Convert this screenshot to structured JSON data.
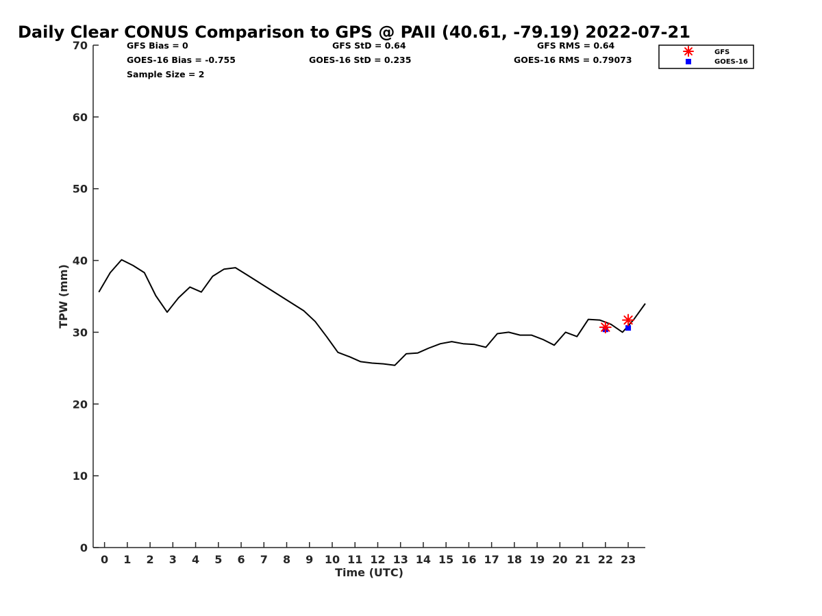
{
  "chart_data": {
    "type": "line",
    "title": "Daily Clear CONUS Comparison to GPS @ PAII (40.61, -79.19) 2022-07-21",
    "xlabel": "Time (UTC)",
    "ylabel": "TPW (mm)",
    "xlim": [
      -0.5,
      23.75
    ],
    "ylim": [
      0,
      70
    ],
    "xticks": [
      0,
      1,
      2,
      3,
      4,
      5,
      6,
      7,
      8,
      9,
      10,
      11,
      12,
      13,
      14,
      15,
      16,
      17,
      18,
      19,
      20,
      21,
      22,
      23
    ],
    "xtick_labels": [
      "0",
      "1",
      "2",
      "3",
      "4",
      "5",
      "6",
      "7",
      "8",
      "9",
      "10",
      "11",
      "12",
      "13",
      "14",
      "15",
      "16",
      "17",
      "18",
      "19",
      "20",
      "21",
      "22",
      "23"
    ],
    "yticks": [
      0,
      10,
      20,
      30,
      40,
      50,
      60,
      70
    ],
    "ytick_labels": [
      "0",
      "10",
      "20",
      "30",
      "40",
      "50",
      "60",
      "70"
    ],
    "grid": false,
    "legend_position": "top-right outside plot",
    "stats": {
      "gfs_bias": "GFS Bias = 0",
      "goes_bias": "GOES-16 Bias = -0.755",
      "sample_size": "Sample Size = 2",
      "gfs_std": "GFS StD = 0.64",
      "goes_std": "GOES-16 StD = 0.235",
      "gfs_rms": "GFS RMS = 0.64",
      "goes_rms": "GOES-16 RMS = 0.79073"
    },
    "series": [
      {
        "style": "line",
        "color": "#000000",
        "x": [
          -0.25,
          0.25,
          0.75,
          1.25,
          1.75,
          2.25,
          2.75,
          3.25,
          3.75,
          4.25,
          4.75,
          5.25,
          5.75,
          6.25,
          6.75,
          7.25,
          7.75,
          8.25,
          8.75,
          9.25,
          9.75,
          10.25,
          10.75,
          11.25,
          11.75,
          12.25,
          12.75,
          13.25,
          13.75,
          14.25,
          14.75,
          15.25,
          15.75,
          16.25,
          16.75,
          17.25,
          17.75,
          18.25,
          18.75,
          19.25,
          19.75,
          20.25,
          20.75,
          21.25,
          21.75,
          22.25,
          22.75,
          23.25,
          23.75
        ],
        "y": [
          35.6,
          38.3,
          40.1,
          39.3,
          38.3,
          35.1,
          32.8,
          34.8,
          36.3,
          35.6,
          37.8,
          38.8,
          39.0,
          38.0,
          37.0,
          36.0,
          35.0,
          34.0,
          33.0,
          31.5,
          29.4,
          27.2,
          26.6,
          25.9,
          25.7,
          25.6,
          25.4,
          27.0,
          27.1,
          27.8,
          28.4,
          28.7,
          28.4,
          28.3,
          27.9,
          29.8,
          30.0,
          29.6,
          29.6,
          29.0,
          28.2,
          30.0,
          29.4,
          31.8,
          31.7,
          31.1,
          30.0,
          31.8,
          34.0
        ]
      },
      {
        "name": "GFS",
        "style": "marker-asterisk",
        "color": "#ff0000",
        "x": [
          22,
          23
        ],
        "y": [
          30.7,
          31.7
        ]
      },
      {
        "name": "GOES-16",
        "style": "marker-square",
        "color": "#0000ff",
        "x": [
          22,
          23
        ],
        "y": [
          30.4,
          30.6
        ]
      }
    ]
  }
}
